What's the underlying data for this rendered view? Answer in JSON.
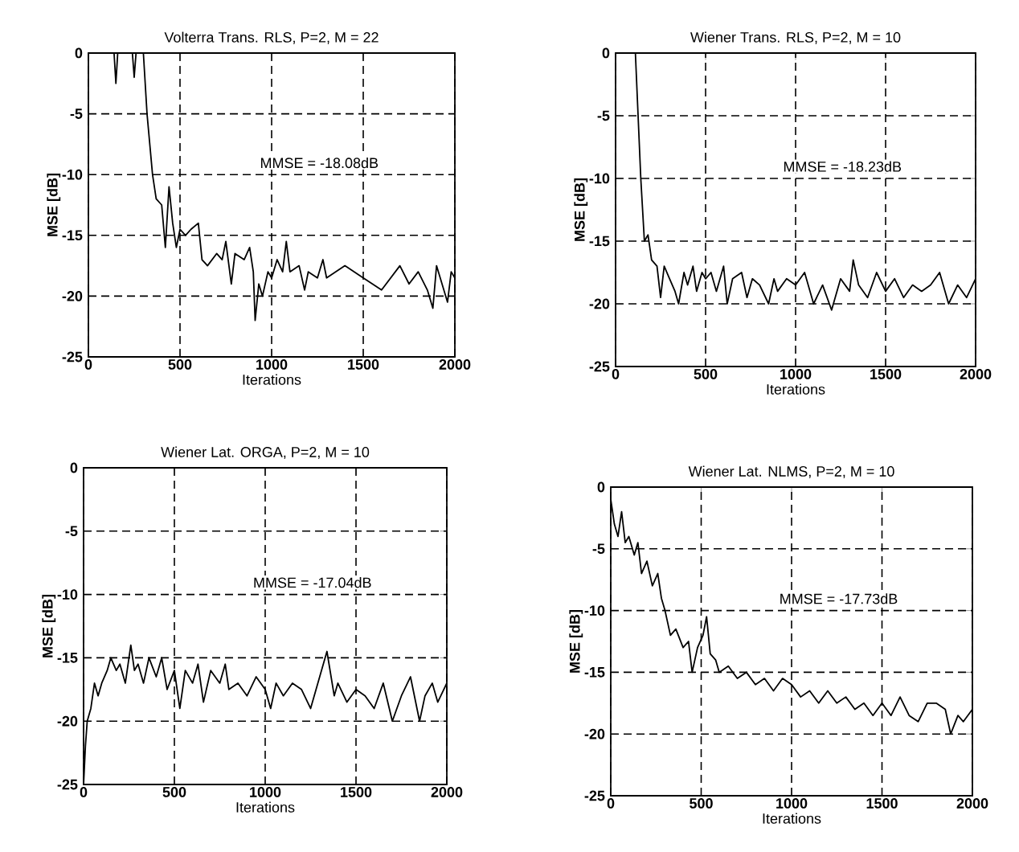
{
  "chart_data": [
    {
      "type": "line",
      "title": "Volterra Trans. RLS, P=2, M = 22",
      "xlabel": "Iterations",
      "ylabel": "MSE [dB]",
      "annotations": [
        "MMSE = -18.08dB"
      ],
      "xlim": [
        0,
        2000
      ],
      "ylim": [
        -25,
        0
      ],
      "xticks": [
        0,
        500,
        1000,
        1500,
        2000
      ],
      "yticks": [
        -25,
        -20,
        -15,
        -10,
        -5,
        0
      ],
      "grid": true,
      "line_style": "solid",
      "series": [
        {
          "color": "#000000",
          "x": [
            0,
            140,
            150,
            160,
            240,
            250,
            260,
            300,
            320,
            350,
            370,
            400,
            420,
            440,
            460,
            480,
            500,
            530,
            560,
            600,
            620,
            650,
            700,
            730,
            750,
            780,
            800,
            850,
            880,
            900,
            910,
            930,
            950,
            980,
            1000,
            1030,
            1060,
            1080,
            1100,
            1150,
            1180,
            1200,
            1250,
            1280,
            1300,
            1350,
            1400,
            1450,
            1500,
            1550,
            1600,
            1650,
            1700,
            1750,
            1800,
            1850,
            1880,
            1900,
            1930,
            1960,
            1980,
            2000
          ],
          "values": [
            0,
            0,
            -2.5,
            0,
            0,
            -2,
            0,
            0,
            -5,
            -10,
            -12,
            -12.5,
            -16,
            -11,
            -14,
            -16,
            -14.5,
            -15,
            -14.5,
            -14,
            -17,
            -17.5,
            -16.5,
            -17,
            -15.5,
            -19,
            -16.5,
            -17,
            -16,
            -18,
            -22,
            -19,
            -20,
            -18,
            -18.5,
            -17,
            -18,
            -15.5,
            -18,
            -17.5,
            -19.5,
            -18,
            -18.5,
            -17,
            -18.5,
            -18,
            -17.5,
            -18,
            -18.5,
            -19,
            -19.5,
            -18.5,
            -17.5,
            -19,
            -18,
            -19.5,
            -21,
            -17.5,
            -19,
            -20.5,
            -18,
            -18.5
          ]
        }
      ]
    },
    {
      "type": "line",
      "title": "Wiener Trans. RLS, P=2, M = 10",
      "xlabel": "Iterations",
      "ylabel": "MSE [dB]",
      "annotations": [
        "MMSE = -18.23dB"
      ],
      "xlim": [
        0,
        2000
      ],
      "ylim": [
        -25,
        0
      ],
      "xticks": [
        0,
        500,
        1000,
        1500,
        2000
      ],
      "yticks": [
        -25,
        -20,
        -15,
        -10,
        -5,
        0
      ],
      "grid": true,
      "line_style": "solid",
      "series": [
        {
          "color": "#000000",
          "x": [
            100,
            110,
            140,
            160,
            180,
            200,
            230,
            250,
            270,
            300,
            330,
            350,
            380,
            400,
            430,
            450,
            480,
            500,
            530,
            560,
            600,
            620,
            650,
            700,
            730,
            760,
            800,
            850,
            880,
            900,
            950,
            1000,
            1050,
            1100,
            1150,
            1200,
            1250,
            1300,
            1320,
            1350,
            1400,
            1450,
            1500,
            1550,
            1600,
            1650,
            1700,
            1750,
            1800,
            1850,
            1900,
            1950,
            2000
          ],
          "values": [
            0,
            0,
            -10,
            -15,
            -14.5,
            -16.5,
            -17,
            -19.5,
            -17,
            -18,
            -19,
            -20,
            -17.5,
            -18.5,
            -17,
            -19,
            -17.5,
            -18,
            -17.5,
            -19,
            -17,
            -20,
            -18,
            -17.5,
            -19.5,
            -18,
            -18.5,
            -20,
            -18,
            -19,
            -18,
            -18.5,
            -17.5,
            -20,
            -18.5,
            -20.5,
            -18,
            -19,
            -16.5,
            -18.5,
            -19.5,
            -17.5,
            -19,
            -18,
            -19.5,
            -18.5,
            -19,
            -18.5,
            -17.5,
            -20,
            -18.5,
            -19.5,
            -18
          ]
        }
      ]
    },
    {
      "type": "line",
      "title": "Wiener Lat. ORGA, P=2, M = 10",
      "xlabel": "Iterations",
      "ylabel": "MSE [dB]",
      "annotations": [
        "MMSE = -17.04dB"
      ],
      "xlim": [
        0,
        2000
      ],
      "ylim": [
        -25,
        0
      ],
      "xticks": [
        0,
        500,
        1000,
        1500,
        2000
      ],
      "yticks": [
        -25,
        -20,
        -15,
        -10,
        -5,
        0
      ],
      "grid": true,
      "line_style": "solid",
      "series": [
        {
          "color": "#000000",
          "x": [
            0,
            10,
            20,
            40,
            60,
            80,
            100,
            130,
            150,
            180,
            200,
            230,
            260,
            280,
            300,
            330,
            360,
            400,
            430,
            460,
            500,
            530,
            560,
            600,
            630,
            660,
            700,
            750,
            780,
            800,
            850,
            900,
            950,
            1000,
            1030,
            1060,
            1100,
            1150,
            1200,
            1250,
            1300,
            1340,
            1380,
            1400,
            1450,
            1500,
            1550,
            1600,
            1650,
            1700,
            1750,
            1800,
            1850,
            1880,
            1920,
            1950,
            2000
          ],
          "values": [
            -25,
            -22,
            -20,
            -19,
            -17,
            -18,
            -17,
            -16,
            -15,
            -16,
            -15.5,
            -17,
            -14,
            -16,
            -15.5,
            -17,
            -15,
            -16.5,
            -15,
            -17.5,
            -16,
            -19,
            -16,
            -17,
            -15.5,
            -18.5,
            -16,
            -17,
            -15.5,
            -17.5,
            -17,
            -18,
            -16.5,
            -17.5,
            -19,
            -17,
            -18,
            -17,
            -17.5,
            -19,
            -16.5,
            -14.5,
            -18,
            -17,
            -18.5,
            -17.5,
            -18,
            -19,
            -17,
            -20,
            -18,
            -16.5,
            -20,
            -18,
            -17,
            -18.5,
            -17
          ]
        }
      ]
    },
    {
      "type": "line",
      "title": "Wiener Lat. NLMS, P=2, M = 10",
      "xlabel": "Iterations",
      "ylabel": "MSE [dB]",
      "annotations": [
        "MMSE = -17.73dB"
      ],
      "xlim": [
        0,
        2000
      ],
      "ylim": [
        -25,
        0
      ],
      "xticks": [
        0,
        500,
        1000,
        1500,
        2000
      ],
      "yticks": [
        -25,
        -20,
        -15,
        -10,
        -5,
        0
      ],
      "grid": true,
      "line_style": "solid",
      "series": [
        {
          "color": "#000000",
          "x": [
            0,
            20,
            40,
            60,
            80,
            100,
            130,
            150,
            170,
            200,
            230,
            260,
            280,
            300,
            330,
            360,
            400,
            430,
            450,
            480,
            510,
            530,
            550,
            580,
            600,
            650,
            700,
            750,
            800,
            850,
            900,
            950,
            1000,
            1050,
            1100,
            1150,
            1200,
            1250,
            1300,
            1350,
            1400,
            1450,
            1500,
            1550,
            1600,
            1650,
            1700,
            1750,
            1800,
            1850,
            1880,
            1920,
            1950,
            2000
          ],
          "values": [
            -1,
            -3,
            -4,
            -2,
            -4.5,
            -4,
            -5.5,
            -4.5,
            -7,
            -6,
            -8,
            -7,
            -9,
            -10,
            -12,
            -11.5,
            -13,
            -12.5,
            -15,
            -13,
            -12,
            -10.5,
            -13.5,
            -14,
            -15,
            -14.5,
            -15.5,
            -15,
            -16,
            -15.5,
            -16.5,
            -15.5,
            -16,
            -17,
            -16.5,
            -17.5,
            -16.5,
            -17.5,
            -17,
            -18,
            -17.5,
            -18.5,
            -17.5,
            -18.5,
            -17,
            -18.5,
            -19,
            -17.5,
            -17.5,
            -18,
            -20,
            -18.5,
            -19,
            -18
          ]
        }
      ]
    }
  ]
}
